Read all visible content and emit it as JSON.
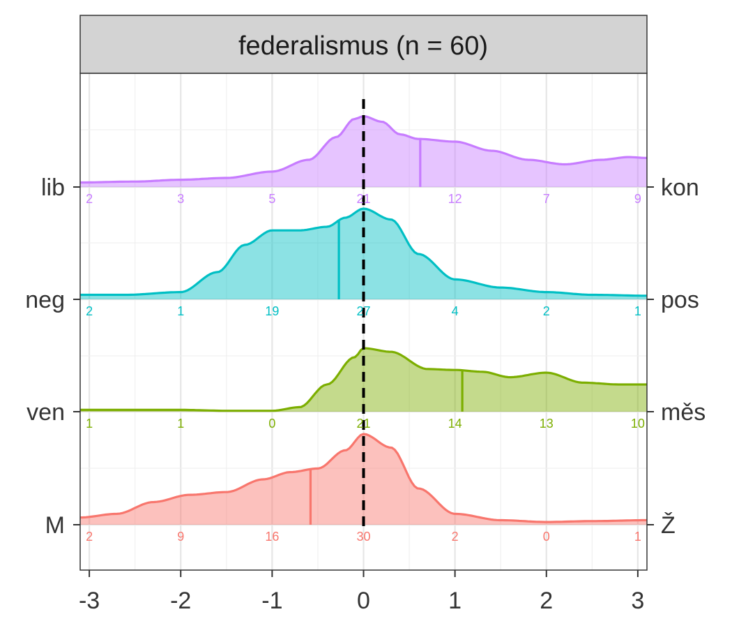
{
  "chart_data": {
    "type": "ridgeline",
    "title": "federalismus (n = 60)",
    "xlim": [
      -3.1,
      3.1
    ],
    "x_ticks": [
      "-3",
      "-2",
      "-1",
      "0",
      "1",
      "2",
      "3"
    ],
    "x_tick_values": [
      -3,
      -2,
      -1,
      0,
      1,
      2,
      3
    ],
    "count_positions": [
      -3,
      -2,
      -1,
      0,
      1,
      2,
      3
    ],
    "reference_line_x": 0,
    "grid": true,
    "rows": [
      {
        "left_label": "lib",
        "right_label": "kon",
        "color": "#c77cff",
        "mean": 0.62,
        "counts": [
          "2",
          "3",
          "5",
          "21",
          "12",
          "7",
          "9"
        ],
        "density": [
          [
            -3.1,
            0.05
          ],
          [
            -2.5,
            0.06
          ],
          [
            -2.0,
            0.08
          ],
          [
            -1.5,
            0.1
          ],
          [
            -1.0,
            0.17
          ],
          [
            -0.6,
            0.3
          ],
          [
            -0.3,
            0.55
          ],
          [
            -0.1,
            0.75
          ],
          [
            0.0,
            0.78
          ],
          [
            0.2,
            0.72
          ],
          [
            0.4,
            0.58
          ],
          [
            0.6,
            0.53
          ],
          [
            1.0,
            0.5
          ],
          [
            1.4,
            0.4
          ],
          [
            1.8,
            0.3
          ],
          [
            2.2,
            0.25
          ],
          [
            2.6,
            0.3
          ],
          [
            2.9,
            0.33
          ],
          [
            3.1,
            0.32
          ]
        ]
      },
      {
        "left_label": "neg",
        "right_label": "pos",
        "color": "#00bfc4",
        "mean": -0.27,
        "counts": [
          "2",
          "1",
          "19",
          "27",
          "4",
          "2",
          "1"
        ],
        "density": [
          [
            -3.1,
            0.05
          ],
          [
            -2.6,
            0.05
          ],
          [
            -2.0,
            0.08
          ],
          [
            -1.6,
            0.3
          ],
          [
            -1.3,
            0.6
          ],
          [
            -1.0,
            0.76
          ],
          [
            -0.7,
            0.76
          ],
          [
            -0.4,
            0.8
          ],
          [
            -0.2,
            0.9
          ],
          [
            0.0,
            1.0
          ],
          [
            0.3,
            0.88
          ],
          [
            0.6,
            0.5
          ],
          [
            1.0,
            0.22
          ],
          [
            1.5,
            0.13
          ],
          [
            2.0,
            0.08
          ],
          [
            2.5,
            0.05
          ],
          [
            3.1,
            0.04
          ]
        ]
      },
      {
        "left_label": "ven",
        "right_label": "měs",
        "color": "#7cae00",
        "mean": 1.08,
        "counts": [
          "1",
          "1",
          "0",
          "21",
          "14",
          "13",
          "10"
        ],
        "density": [
          [
            -3.1,
            0.02
          ],
          [
            -2.5,
            0.02
          ],
          [
            -2.0,
            0.02
          ],
          [
            -1.5,
            0.01
          ],
          [
            -1.0,
            0.01
          ],
          [
            -0.7,
            0.05
          ],
          [
            -0.4,
            0.3
          ],
          [
            -0.1,
            0.6
          ],
          [
            0.0,
            0.7
          ],
          [
            0.3,
            0.66
          ],
          [
            0.7,
            0.47
          ],
          [
            1.0,
            0.46
          ],
          [
            1.3,
            0.44
          ],
          [
            1.6,
            0.38
          ],
          [
            2.0,
            0.43
          ],
          [
            2.4,
            0.32
          ],
          [
            2.8,
            0.3
          ],
          [
            3.1,
            0.3
          ]
        ]
      },
      {
        "left_label": "M",
        "right_label": "Ž",
        "color": "#f8766d",
        "mean": -0.58,
        "counts": [
          "2",
          "9",
          "16",
          "30",
          "2",
          "0",
          "1"
        ],
        "density": [
          [
            -3.1,
            0.08
          ],
          [
            -2.7,
            0.12
          ],
          [
            -2.3,
            0.25
          ],
          [
            -1.9,
            0.33
          ],
          [
            -1.5,
            0.36
          ],
          [
            -1.1,
            0.5
          ],
          [
            -0.8,
            0.58
          ],
          [
            -0.5,
            0.62
          ],
          [
            -0.2,
            0.82
          ],
          [
            0.0,
            1.0
          ],
          [
            0.3,
            0.85
          ],
          [
            0.6,
            0.4
          ],
          [
            1.0,
            0.12
          ],
          [
            1.5,
            0.05
          ],
          [
            2.0,
            0.03
          ],
          [
            2.5,
            0.04
          ],
          [
            3.1,
            0.05
          ]
        ]
      }
    ]
  }
}
